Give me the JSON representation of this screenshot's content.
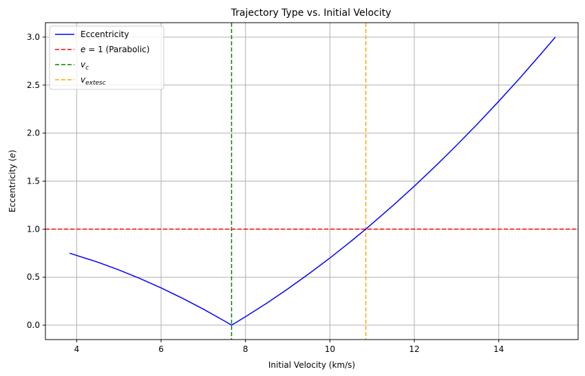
{
  "chart_data": {
    "type": "line",
    "title": "Trajectory Type vs. Initial Velocity",
    "xlabel": "Initial Velocity (km/s)",
    "ylabel": "Eccentricity (e)",
    "xlim": [
      3.26,
      15.88
    ],
    "ylim": [
      -0.15,
      3.15
    ],
    "xticks": [
      4,
      6,
      8,
      10,
      12,
      14
    ],
    "xtick_labels": [
      "4",
      "6",
      "8",
      "10",
      "12",
      "14"
    ],
    "yticks": [
      0.0,
      0.5,
      1.0,
      1.5,
      2.0,
      2.5,
      3.0
    ],
    "ytick_labels": [
      "0.0",
      "0.5",
      "1.0",
      "1.5",
      "2.0",
      "2.5",
      "3.0"
    ],
    "grid": true,
    "legend_position": "top-left",
    "series": [
      {
        "name": "Eccentricity",
        "color": "#0000ff",
        "style": "solid",
        "x": [
          3.83,
          4.5,
          5.0,
          5.5,
          6.0,
          6.5,
          7.0,
          7.5,
          7.67,
          8.0,
          8.5,
          9.0,
          9.5,
          10.0,
          10.5,
          10.85,
          11.5,
          12.0,
          12.5,
          13.0,
          13.5,
          14.0,
          14.5,
          15.0,
          15.34
        ],
        "y": [
          0.75,
          0.656,
          0.575,
          0.486,
          0.388,
          0.282,
          0.167,
          0.044,
          0.0,
          0.088,
          0.228,
          0.377,
          0.534,
          0.7,
          0.874,
          1.0,
          1.248,
          1.448,
          1.656,
          1.873,
          2.098,
          2.332,
          2.574,
          2.825,
          3.0
        ]
      }
    ],
    "reference_lines": [
      {
        "name": "e = 1 (Parabolic)",
        "orientation": "horizontal",
        "value": 1.0,
        "color": "#ff0000",
        "style": "dashed"
      },
      {
        "name": "v_c",
        "orientation": "vertical",
        "value": 7.67,
        "color": "#008000",
        "style": "dashed"
      },
      {
        "name": "v_extesc",
        "orientation": "vertical",
        "value": 10.85,
        "color": "#ffa500",
        "style": "dashed"
      }
    ]
  }
}
